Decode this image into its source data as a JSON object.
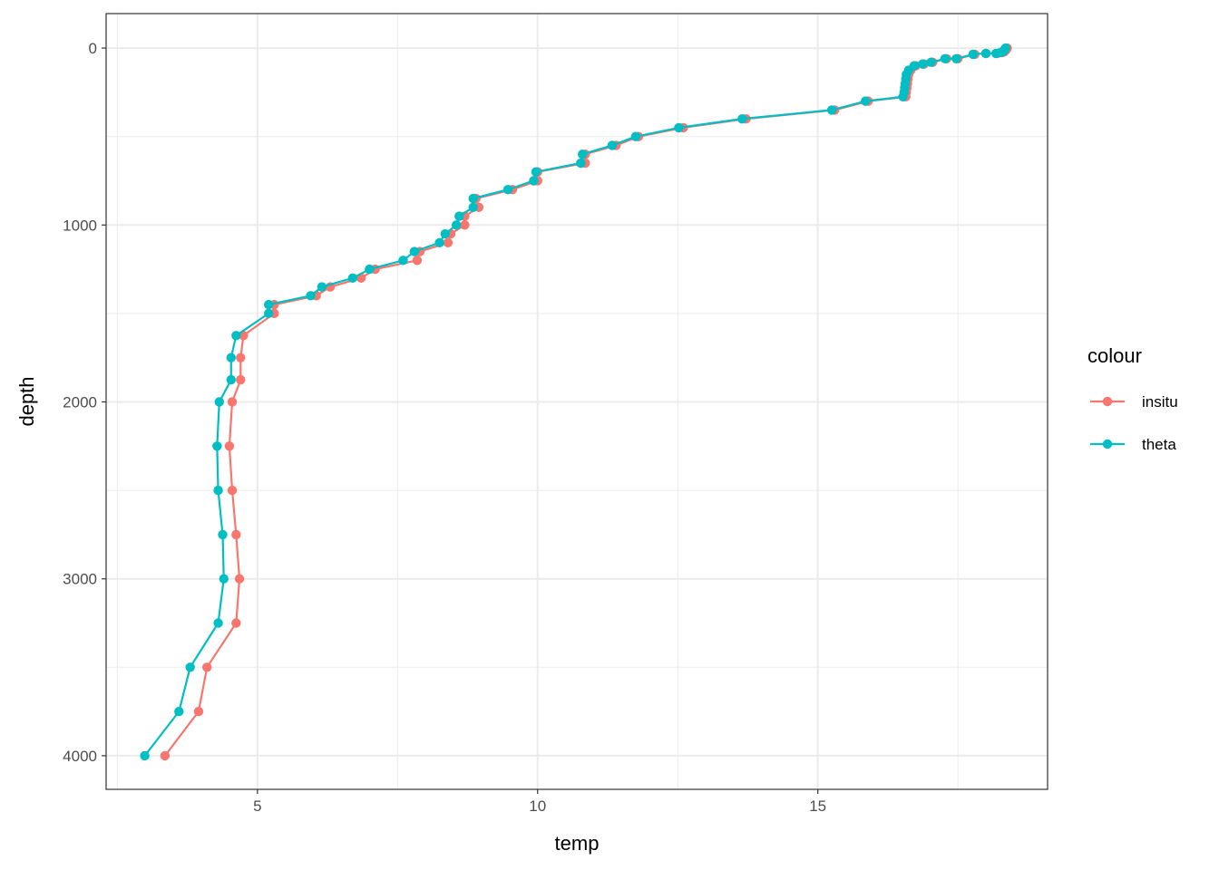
{
  "chart_data": {
    "type": "line",
    "xlabel": "temp",
    "ylabel": "depth",
    "xlim": [
      2.3,
      19.1
    ],
    "ylim": [
      -195,
      4190
    ],
    "y_reversed": true,
    "x_ticks": [
      5,
      10,
      15
    ],
    "x_tick_labels": [
      "5",
      "10",
      "15"
    ],
    "x_minor": [
      2.5,
      7.5,
      12.5,
      17.5
    ],
    "y_ticks": [
      0,
      1000,
      2000,
      3000,
      4000
    ],
    "y_tick_labels": [
      "0",
      "1000",
      "2000",
      "3000",
      "4000"
    ],
    "y_minor": [
      500,
      1500,
      2500,
      3500
    ],
    "grid": true,
    "legend": {
      "title": "colour",
      "position": "right"
    },
    "series": [
      {
        "name": "insitu",
        "color": "#F8766D",
        "points": [
          [
            18.38,
            0
          ],
          [
            18.36,
            10
          ],
          [
            18.33,
            20
          ],
          [
            18.29,
            25
          ],
          [
            18.2,
            30
          ],
          [
            18.0,
            30
          ],
          [
            17.8,
            35
          ],
          [
            17.5,
            60
          ],
          [
            17.3,
            60
          ],
          [
            17.05,
            80
          ],
          [
            16.9,
            90
          ],
          [
            16.75,
            100
          ],
          [
            16.66,
            125
          ],
          [
            16.62,
            150
          ],
          [
            16.61,
            175
          ],
          [
            16.6,
            200
          ],
          [
            16.59,
            225
          ],
          [
            16.58,
            250
          ],
          [
            16.57,
            275
          ],
          [
            15.9,
            300
          ],
          [
            15.3,
            350
          ],
          [
            13.72,
            400
          ],
          [
            12.6,
            450
          ],
          [
            11.8,
            500
          ],
          [
            11.4,
            550
          ],
          [
            10.85,
            600
          ],
          [
            10.85,
            650
          ],
          [
            10.0,
            700
          ],
          [
            10.0,
            750
          ],
          [
            9.55,
            800
          ],
          [
            8.9,
            850
          ],
          [
            8.95,
            900
          ],
          [
            8.7,
            950
          ],
          [
            8.7,
            1000
          ],
          [
            8.45,
            1050
          ],
          [
            8.4,
            1100
          ],
          [
            7.9,
            1150
          ],
          [
            7.85,
            1200
          ],
          [
            7.1,
            1250
          ],
          [
            6.85,
            1300
          ],
          [
            6.3,
            1350
          ],
          [
            6.05,
            1400
          ],
          [
            5.3,
            1450
          ],
          [
            5.3,
            1500
          ],
          [
            4.75,
            1625
          ],
          [
            4.7,
            1750
          ],
          [
            4.7,
            1875
          ],
          [
            4.55,
            2000
          ],
          [
            4.5,
            2250
          ],
          [
            4.55,
            2500
          ],
          [
            4.62,
            2750
          ],
          [
            4.68,
            3000
          ],
          [
            4.62,
            3250
          ],
          [
            4.1,
            3500
          ],
          [
            3.95,
            3750
          ],
          [
            3.35,
            4000
          ]
        ]
      },
      {
        "name": "theta",
        "color": "#00BFC4",
        "points": [
          [
            18.35,
            0
          ],
          [
            18.33,
            10
          ],
          [
            18.3,
            20
          ],
          [
            18.26,
            25
          ],
          [
            18.18,
            30
          ],
          [
            18.0,
            30
          ],
          [
            17.77,
            35
          ],
          [
            17.47,
            60
          ],
          [
            17.27,
            60
          ],
          [
            17.02,
            80
          ],
          [
            16.87,
            90
          ],
          [
            16.72,
            100
          ],
          [
            16.62,
            125
          ],
          [
            16.58,
            150
          ],
          [
            16.57,
            175
          ],
          [
            16.56,
            200
          ],
          [
            16.55,
            225
          ],
          [
            16.54,
            250
          ],
          [
            16.52,
            275
          ],
          [
            15.85,
            300
          ],
          [
            15.25,
            350
          ],
          [
            13.65,
            400
          ],
          [
            12.52,
            450
          ],
          [
            11.75,
            500
          ],
          [
            11.33,
            550
          ],
          [
            10.8,
            600
          ],
          [
            10.77,
            650
          ],
          [
            9.97,
            700
          ],
          [
            9.93,
            750
          ],
          [
            9.47,
            800
          ],
          [
            8.85,
            850
          ],
          [
            8.85,
            900
          ],
          [
            8.6,
            950
          ],
          [
            8.55,
            1000
          ],
          [
            8.35,
            1050
          ],
          [
            8.25,
            1100
          ],
          [
            7.8,
            1150
          ],
          [
            7.6,
            1200
          ],
          [
            7.0,
            1250
          ],
          [
            6.7,
            1300
          ],
          [
            6.15,
            1350
          ],
          [
            5.95,
            1400
          ],
          [
            5.2,
            1450
          ],
          [
            5.2,
            1500
          ],
          [
            4.62,
            1625
          ],
          [
            4.53,
            1750
          ],
          [
            4.53,
            1875
          ],
          [
            4.32,
            2000
          ],
          [
            4.28,
            2250
          ],
          [
            4.3,
            2500
          ],
          [
            4.38,
            2750
          ],
          [
            4.4,
            3000
          ],
          [
            4.3,
            3250
          ],
          [
            3.8,
            3500
          ],
          [
            3.6,
            3750
          ],
          [
            2.99,
            4000
          ]
        ]
      }
    ]
  }
}
